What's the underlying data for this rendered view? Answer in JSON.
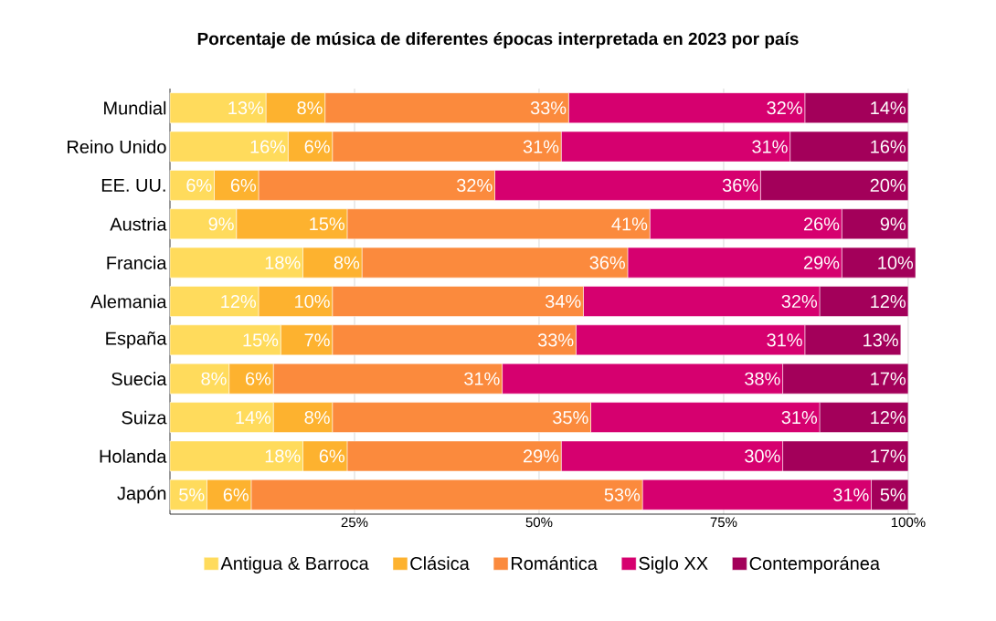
{
  "chart_data": {
    "type": "bar",
    "orientation": "horizontal",
    "stacked": true,
    "title": "Porcentaje de música de diferentes épocas interpretada en 2023 por país",
    "categories": [
      "Mundial",
      "Reino Unido",
      "EE. UU.",
      "Austria",
      "Francia",
      "Alemania",
      "España",
      "Suecia",
      "Suiza",
      "Holanda",
      "Japón"
    ],
    "series": [
      {
        "name": "Antigua & Barroca",
        "color": "#ffdb5c",
        "values": [
          13,
          16,
          6,
          9,
          18,
          12,
          15,
          8,
          14,
          18,
          5
        ],
        "value_labels": [
          "13%",
          "16%",
          "6%",
          "9%",
          "18%",
          "12%",
          "15%",
          "8%",
          "14%",
          "18%",
          "5%"
        ]
      },
      {
        "name": "Clásica",
        "color": "#fdb22f",
        "values": [
          8,
          6,
          6,
          15,
          8,
          10,
          7,
          6,
          8,
          6,
          6
        ],
        "value_labels": [
          "8%",
          "6%",
          "6%",
          "15%",
          "8%",
          "10%",
          "7%",
          "6%",
          "8%",
          "6%",
          "6%"
        ]
      },
      {
        "name": "Romántica",
        "color": "#fb8a3d",
        "values": [
          33,
          31,
          32,
          41,
          36,
          34,
          33,
          31,
          35,
          29,
          53
        ],
        "value_labels": [
          "33%",
          "31%",
          "32%",
          "41%",
          "36%",
          "34%",
          "33%",
          "31%",
          "35%",
          "29%",
          "53%"
        ]
      },
      {
        "name": "Siglo XX",
        "color": "#d6006f",
        "values": [
          32,
          31,
          36,
          26,
          29,
          32,
          31,
          38,
          31,
          30,
          31
        ],
        "value_labels": [
          "32%",
          "31%",
          "36%",
          "26%",
          "29%",
          "32%",
          "31%",
          "38%",
          "31%",
          "30%",
          "31%"
        ]
      },
      {
        "name": "Contemporánea",
        "color": "#a3005a",
        "values": [
          14,
          16,
          20,
          9,
          10,
          12,
          13,
          17,
          12,
          17,
          5
        ],
        "value_labels": [
          "14%",
          "16%",
          "20%",
          "9%",
          "10%",
          "12%",
          "13%",
          "17%",
          "12%",
          "17%",
          "5%"
        ]
      }
    ],
    "xlim": [
      0,
      101
    ],
    "xticks": [
      {
        "value": 25,
        "label": "25%"
      },
      {
        "value": 50,
        "label": "50%"
      },
      {
        "value": 75,
        "label": "75%"
      },
      {
        "value": 100,
        "label": "100%"
      }
    ],
    "grid": "x",
    "legend": "bottom"
  }
}
